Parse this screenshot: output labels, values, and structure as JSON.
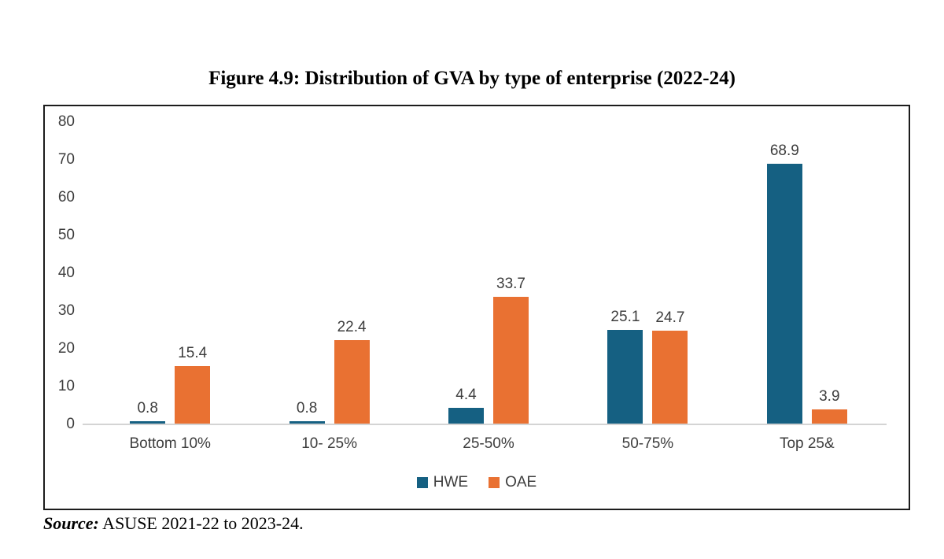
{
  "title": "Figure 4.9: Distribution of GVA by type of enterprise (2022-24)",
  "source": {
    "label": "Source:",
    "text": " ASUSE 2021-22 to 2023-24."
  },
  "chart_data": {
    "type": "bar",
    "title": "Figure 4.9: Distribution of GVA by type of enterprise (2022-24)",
    "categories": [
      "Bottom 10%",
      "10- 25%",
      "25-50%",
      "50-75%",
      "Top 25&"
    ],
    "series": [
      {
        "name": "HWE",
        "color": "#156082",
        "values": [
          0.8,
          0.8,
          4.4,
          25.1,
          68.9
        ]
      },
      {
        "name": "OAE",
        "color": "#E97132",
        "values": [
          15.4,
          22.4,
          33.7,
          24.7,
          3.9
        ]
      }
    ],
    "xlabel": "",
    "ylabel": "",
    "ylim": [
      0,
      80
    ],
    "yticks": [
      0,
      10,
      20,
      30,
      40,
      50,
      60,
      70,
      80
    ],
    "grid": false,
    "value_labels": true,
    "legend_position": "bottom-center",
    "frame_border_color": "#1c1c1c",
    "axis_line_color": "#d4d4d4",
    "label_text_color": "#3d3d3d"
  }
}
